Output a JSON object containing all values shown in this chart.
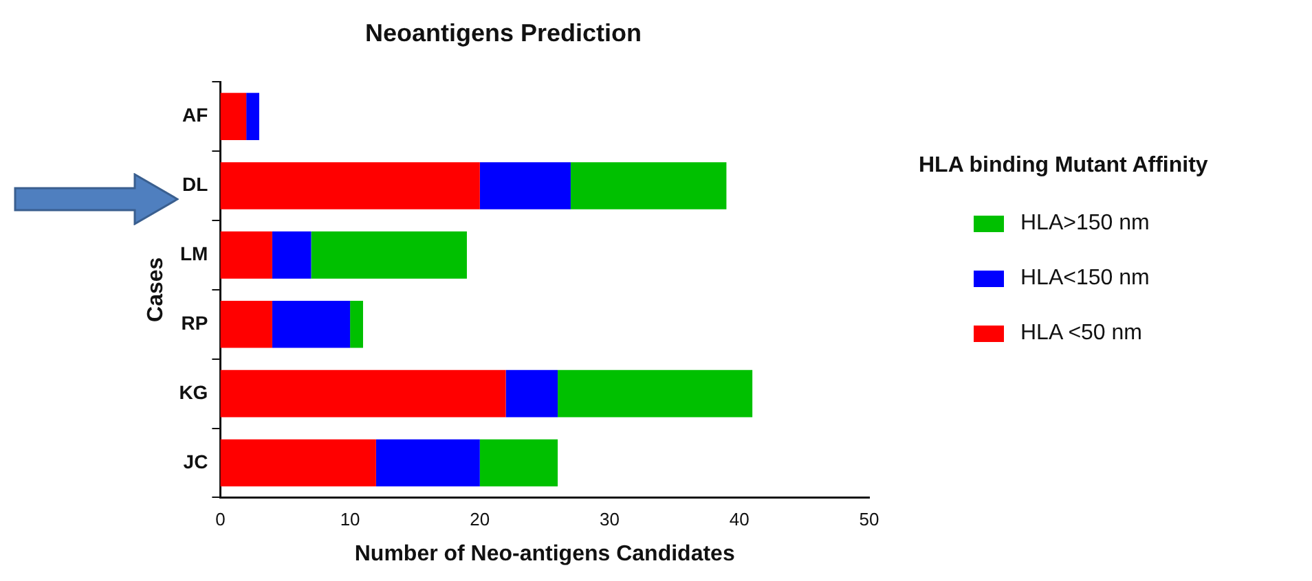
{
  "chart_data": {
    "type": "bar",
    "orientation": "horizontal",
    "stacked": true,
    "title": "Neoantigens Prediction",
    "xlabel": "Number of Neo-antigens Candidates",
    "ylabel": "Cases",
    "legend_title": "HLA binding Mutant Affinity",
    "legend": "right",
    "grid": false,
    "categories": [
      "AF",
      "DL",
      "LM",
      "RP",
      "KG",
      "JC"
    ],
    "xlim": [
      0,
      50
    ],
    "xticks": [
      0,
      10,
      20,
      30,
      40,
      50
    ],
    "series": [
      {
        "name": "HLA <50 nm",
        "color": "#ff0000",
        "values": [
          2,
          20,
          4,
          4,
          22,
          12
        ]
      },
      {
        "name": "HLA<150 nm",
        "color": "#0000ff",
        "values": [
          1,
          7,
          3,
          6,
          4,
          8
        ]
      },
      {
        "name": "HLA>150 nm",
        "color": "#00c000",
        "values": [
          0,
          12,
          12,
          1,
          15,
          6
        ]
      }
    ]
  }
}
